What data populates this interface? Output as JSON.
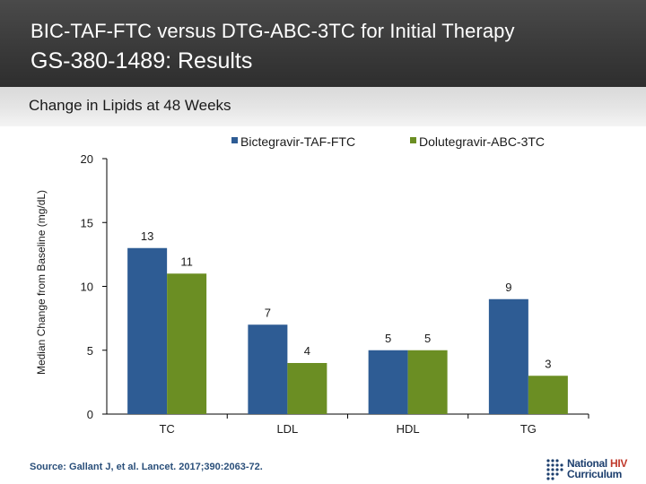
{
  "header": {
    "title_line1": "BIC-TAF-FTC versus DTG-ABC-3TC for Initial Therapy",
    "title_line2": "GS-380-1489: Results"
  },
  "subtitle": "Change in Lipids at 48 Weeks",
  "source": "Source: Gallant J, et al. Lancet. 2017;390:2063-72.",
  "logo": {
    "line1_a": "National ",
    "line1_b": "HIV",
    "line2": "Curriculum",
    "icon": "dot-matrix-logo-icon"
  },
  "chart_data": {
    "type": "bar",
    "ylabel": "Median Change from Baseline (mg/dL)",
    "xlabel": "",
    "ylim": [
      0,
      20
    ],
    "yticks": [
      0,
      5,
      10,
      15,
      20
    ],
    "categories": [
      "TC",
      "LDL",
      "HDL",
      "TG"
    ],
    "series": [
      {
        "name": "Bictegravir-TAF-FTC",
        "color": "#2e5c94",
        "values": [
          13,
          7,
          5,
          9
        ]
      },
      {
        "name": "Dolutegravir-ABC-3TC",
        "color": "#6b8e23",
        "values": [
          11,
          4,
          5,
          3
        ]
      }
    ],
    "legend": "top-right",
    "grid": false
  }
}
